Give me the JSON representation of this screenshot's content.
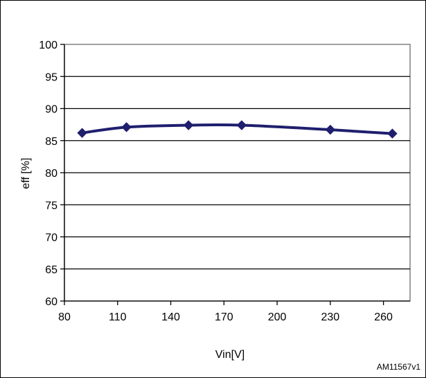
{
  "chart_data": {
    "type": "line",
    "x": [
      90,
      115,
      150,
      180,
      230,
      265
    ],
    "series": [
      {
        "values": [
          86.2,
          87.1,
          87.4,
          87.4,
          86.7,
          86.1
        ]
      }
    ],
    "xlabel": "Vin[V]",
    "ylabel": "eff [%]",
    "xlim": [
      80,
      275
    ],
    "ylim": [
      60,
      100
    ],
    "xticks": [
      80,
      110,
      140,
      170,
      200,
      230,
      260
    ],
    "yticks": [
      60,
      65,
      70,
      75,
      80,
      85,
      90,
      95,
      100
    ],
    "grid": "horizontal",
    "legend": "none",
    "line_color": "#1f1f6e",
    "marker": "diamond"
  },
  "figure_id": "AM11567v1"
}
